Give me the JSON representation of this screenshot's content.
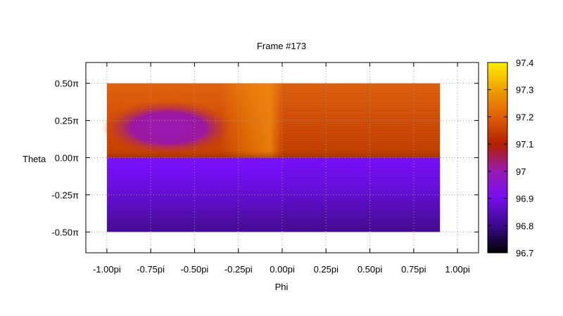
{
  "chart_data": {
    "type": "heatmap",
    "title": "Frame #173",
    "xlabel": "Phi",
    "ylabel": "Theta",
    "x_tick_labels": [
      "-1.00pi",
      "-0.75pi",
      "-0.50pi",
      "-0.25pi",
      "0.00pi",
      "0.25pi",
      "0.50pi",
      "0.75pi",
      "1.00pi"
    ],
    "x_ticks": [
      -1.0,
      -0.75,
      -0.5,
      -0.25,
      0.0,
      0.25,
      0.5,
      0.75,
      1.0
    ],
    "y_tick_labels": [
      "0.50π",
      "0.25π",
      "0.00π",
      "-0.25π",
      "-0.50π"
    ],
    "y_ticks": [
      0.5,
      0.25,
      0.0,
      -0.25,
      -0.5
    ],
    "xlim": [
      -1.12,
      1.12
    ],
    "ylim": [
      -0.64,
      0.64
    ],
    "data_extent": {
      "x": [
        -1.0,
        0.9
      ],
      "y": [
        -0.5,
        0.5
      ]
    },
    "colorbar": {
      "range": [
        96.7,
        97.4
      ],
      "tick_labels": [
        "97.4",
        "97.3",
        "97.2",
        "97.1",
        "97",
        "96.9",
        "96.8",
        "96.7"
      ],
      "ticks": [
        97.4,
        97.3,
        97.2,
        97.1,
        97.0,
        96.9,
        96.8,
        96.7
      ],
      "palette": "black-purple-red-orange-yellow"
    },
    "grid": true,
    "regions": [
      {
        "name": "upper hemisphere",
        "theta": [
          0.0,
          0.5
        ],
        "phi": [
          -1.0,
          0.9
        ],
        "value_approx": 97.15
      },
      {
        "name": "upper-left minimum",
        "center_phi": -0.65,
        "center_theta": 0.2,
        "value_approx": 96.98
      },
      {
        "name": "lower hemisphere",
        "theta": [
          -0.5,
          0.0
        ],
        "phi": [
          -1.0,
          0.9
        ],
        "value_range": [
          96.82,
          96.9
        ]
      }
    ]
  }
}
